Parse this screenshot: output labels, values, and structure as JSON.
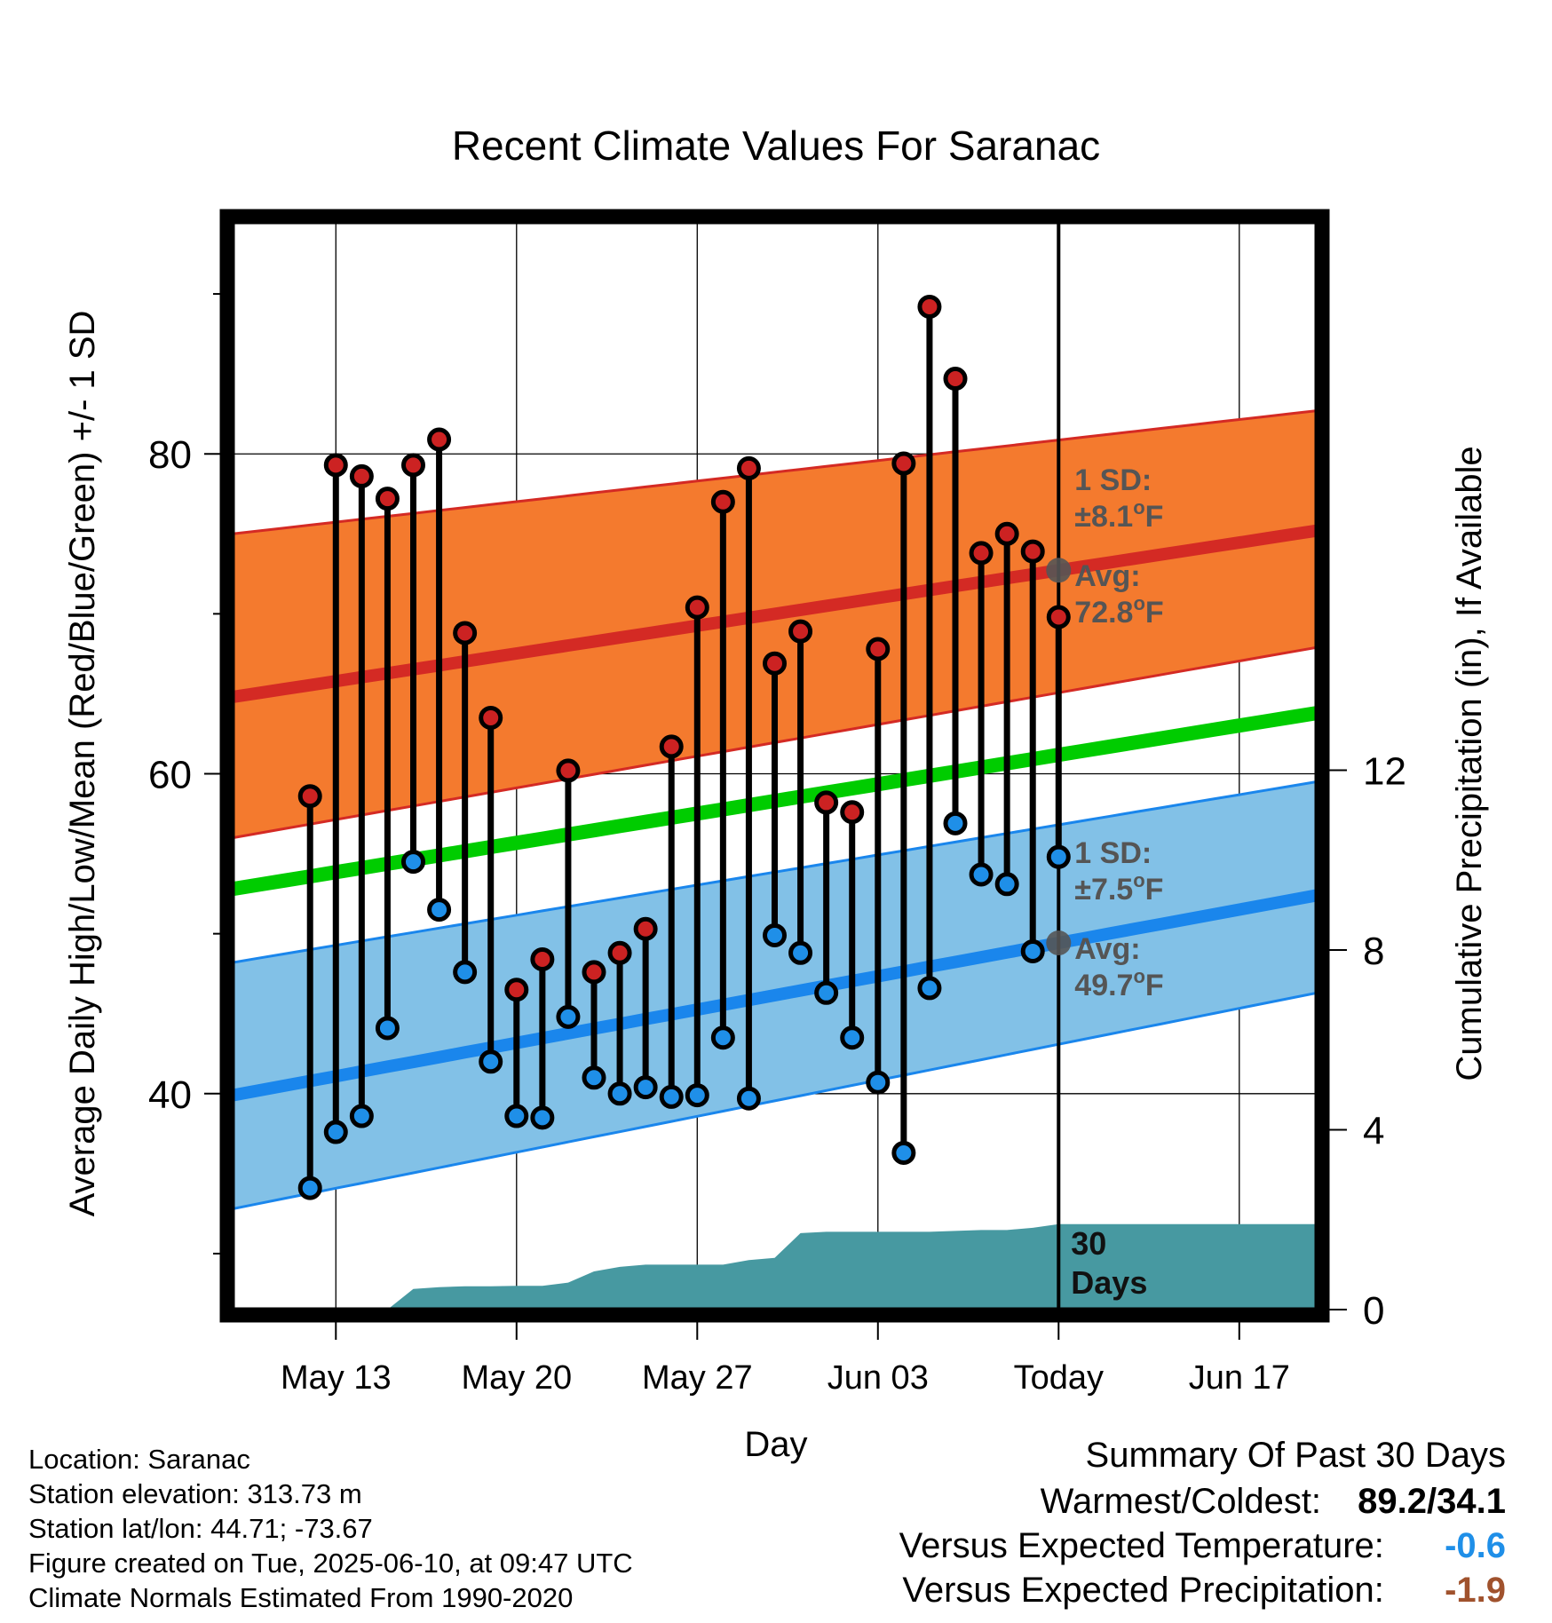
{
  "chart_data": {
    "type": "line",
    "title": "Recent Climate Values For Saranac",
    "xlabel": "Day",
    "ylabel_left": "Average Daily High/Low/Mean (Red/Blue/Green) +/- 1 SD",
    "ylabel_right": "Cumulative Precipitation (in), If Available",
    "x_axis": {
      "start": "2025-05-09",
      "end": "2025-06-20",
      "tick_labels": [
        "May 13",
        "May 20",
        "May 27",
        "Jun 03",
        "Today",
        "Jun 17"
      ],
      "tick_dates": [
        "2025-05-13",
        "2025-05-20",
        "2025-05-27",
        "2025-06-03",
        "2025-06-10",
        "2025-06-17"
      ],
      "today": "2025-06-10"
    },
    "y_left": {
      "ylim": [
        26.5,
        94.5
      ],
      "ticks": [
        40,
        60,
        80
      ],
      "minor_ticks": [
        30,
        50,
        70,
        90
      ]
    },
    "y_right": {
      "ylim": [
        0,
        24.2
      ],
      "ticks": [
        0,
        4,
        8,
        12
      ]
    },
    "grid": true,
    "colors": {
      "high_band": "#f47a2e",
      "high_mean": "#d42a24",
      "high_edge": "#d42a24",
      "low_band": "#82c1e7",
      "low_mean": "#1a86ec",
      "low_edge": "#1a86ec",
      "mean_line": "#00cc00",
      "precip": "#4799a1",
      "high_dot": "#cc2222",
      "low_dot": "#1f8fe8",
      "annotation": "#555555",
      "temp_anomaly": "#1f8fe8",
      "precip_anomaly": "#a0522d"
    },
    "normals": {
      "start": "2025-05-09",
      "end": "2025-06-20",
      "high_mean": [
        64.8,
        75.2
      ],
      "high_sd_upper": [
        75.0,
        82.7
      ],
      "high_sd_lower": [
        56.0,
        67.9
      ],
      "low_mean": [
        39.9,
        52.4
      ],
      "low_sd_upper": [
        48.2,
        59.5
      ],
      "low_sd_lower": [
        32.8,
        46.3
      ],
      "mean": [
        52.8,
        63.8
      ]
    },
    "observations": {
      "dates": [
        "2025-05-12",
        "2025-05-13",
        "2025-05-14",
        "2025-05-15",
        "2025-05-16",
        "2025-05-17",
        "2025-05-18",
        "2025-05-19",
        "2025-05-20",
        "2025-05-21",
        "2025-05-22",
        "2025-05-23",
        "2025-05-24",
        "2025-05-25",
        "2025-05-26",
        "2025-05-27",
        "2025-05-28",
        "2025-05-29",
        "2025-05-30",
        "2025-05-31",
        "2025-06-01",
        "2025-06-02",
        "2025-06-03",
        "2025-06-04",
        "2025-06-05",
        "2025-06-06",
        "2025-06-07",
        "2025-06-08",
        "2025-06-09",
        "2025-06-10"
      ],
      "high": [
        58.6,
        79.3,
        78.6,
        77.2,
        79.3,
        80.9,
        68.8,
        63.5,
        46.5,
        48.4,
        60.2,
        47.6,
        48.8,
        50.3,
        61.7,
        70.4,
        77.0,
        79.1,
        66.9,
        68.9,
        58.2,
        57.6,
        67.8,
        79.4,
        89.2,
        84.7,
        73.8,
        75.0,
        73.9,
        69.8
      ],
      "low": [
        34.1,
        37.6,
        38.6,
        44.1,
        54.5,
        51.5,
        47.6,
        42.0,
        38.6,
        38.5,
        44.8,
        41.0,
        40.0,
        40.4,
        39.8,
        39.9,
        43.5,
        39.7,
        49.9,
        48.8,
        46.3,
        43.5,
        40.7,
        36.3,
        46.6,
        56.9,
        53.7,
        53.1,
        48.9,
        54.8
      ]
    },
    "precipitation": {
      "name": "30 Days",
      "dates": [
        "2025-05-09",
        "2025-05-15",
        "2025-05-16",
        "2025-05-17",
        "2025-05-18",
        "2025-05-19",
        "2025-05-20",
        "2025-05-21",
        "2025-05-22",
        "2025-05-23",
        "2025-05-24",
        "2025-05-25",
        "2025-05-26",
        "2025-05-27",
        "2025-05-28",
        "2025-05-29",
        "2025-05-30",
        "2025-05-31",
        "2025-06-01",
        "2025-06-02",
        "2025-06-03",
        "2025-06-04",
        "2025-06-05",
        "2025-06-06",
        "2025-06-07",
        "2025-06-08",
        "2025-06-09",
        "2025-06-10",
        "2025-06-20"
      ],
      "values": [
        0,
        0,
        0.46,
        0.5,
        0.52,
        0.52,
        0.53,
        0.53,
        0.6,
        0.85,
        0.95,
        1.0,
        1.0,
        1.0,
        1.0,
        1.1,
        1.15,
        1.7,
        1.73,
        1.73,
        1.73,
        1.73,
        1.73,
        1.75,
        1.77,
        1.77,
        1.82,
        1.9,
        1.9
      ]
    },
    "annotations": {
      "high_sd_label": "1 SD:",
      "high_sd_value": "±8.1",
      "high_avg_label": "Avg:",
      "high_avg_value": "72.8",
      "low_sd_label": "1 SD:",
      "low_sd_value": "±7.5",
      "low_avg_label": "Avg:",
      "low_avg_value": "49.7",
      "degree_unit": "o",
      "temp_unit_letter": "F",
      "precip_label_line1": "30",
      "precip_label_line2": "Days"
    }
  },
  "footer": {
    "location": "Location: Saranac",
    "elevation": "Station elevation: 313.73 m",
    "latlon": "Station lat/lon: 44.71; -73.67",
    "created": "Figure created on Tue, 2025-06-10, at 09:47 UTC",
    "normals": "Climate Normals Estimated From 1990-2020"
  },
  "summary": {
    "title": "Summary Of Past 30 Days",
    "warmest_label": "Warmest/Coldest:",
    "warmest_value": "89.2/34.1",
    "temp_label": "Versus Expected Temperature:",
    "temp_value": "-0.6",
    "precip_label": "Versus Expected Precipitation:",
    "precip_value": "-1.9"
  }
}
